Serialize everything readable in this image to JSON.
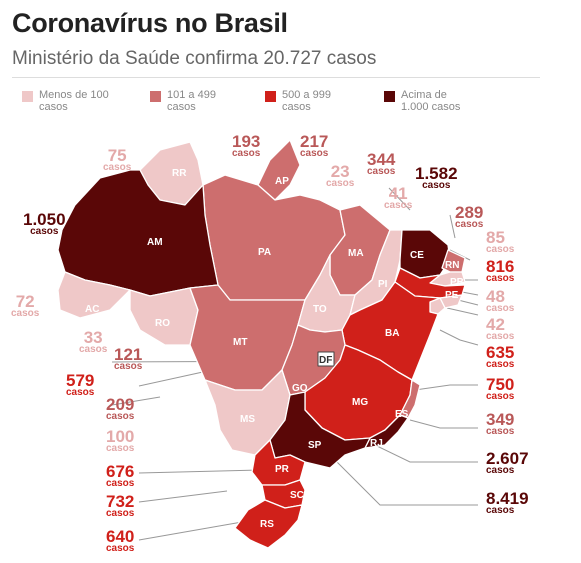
{
  "header": {
    "title": "Coronavírus no Brasil",
    "subtitle": "Ministério da Saúde confirma 20.727 casos"
  },
  "legend": [
    {
      "label": "Menos de 100 casos",
      "color": "#efc8c8"
    },
    {
      "label": "101 a 499 casos",
      "color": "#cd6e6e"
    },
    {
      "label": "500 a 999 casos",
      "color": "#d0201a"
    },
    {
      "label": "Acima de 1.000 casos",
      "color": "#5a0707"
    }
  ],
  "unit": "casos",
  "states": [
    {
      "code": "RR",
      "cases": "75"
    },
    {
      "code": "AP",
      "cases": "193"
    },
    {
      "code": "PA",
      "cases": "217"
    },
    {
      "code": "AM",
      "cases": "1.050"
    },
    {
      "code": "MA",
      "cases": "23"
    },
    {
      "code": "CE",
      "cases": "1.582"
    },
    {
      "code": "PI",
      "cases": "41"
    },
    {
      "code": "RN",
      "cases": "289"
    },
    {
      "code": "PB",
      "cases": "85"
    },
    {
      "code": "PE",
      "cases": "816"
    },
    {
      "code": "AL",
      "cases": "48"
    },
    {
      "code": "SE",
      "cases": "42"
    },
    {
      "code": "BA",
      "cases": "635"
    },
    {
      "code": "AC",
      "cases": "72"
    },
    {
      "code": "RO",
      "cases": "33"
    },
    {
      "code": "TO",
      "cases": "344"
    },
    {
      "code": "MT",
      "cases": "121"
    },
    {
      "code": "DF",
      "cases": "579"
    },
    {
      "code": "GO",
      "cases": "209"
    },
    {
      "code": "MG",
      "cases": "750"
    },
    {
      "code": "ES",
      "cases": "349"
    },
    {
      "code": "MS",
      "cases": "100"
    },
    {
      "code": "RJ",
      "cases": "2.607"
    },
    {
      "code": "SP",
      "cases": "8.419"
    },
    {
      "code": "PR",
      "cases": "676"
    },
    {
      "code": "SC",
      "cases": "732"
    },
    {
      "code": "RS",
      "cases": "640"
    }
  ]
}
